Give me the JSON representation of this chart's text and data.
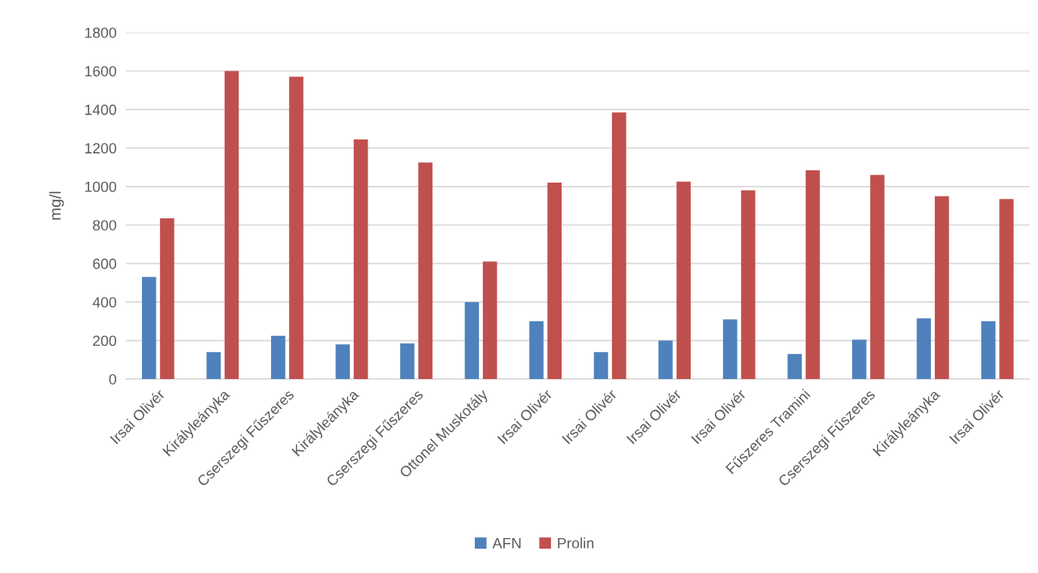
{
  "chart_data": {
    "type": "bar",
    "ylabel": "mg/l",
    "categories": [
      "Irsai Olivér",
      "Királyleányka",
      "Cserszegi Fűszeres",
      "Királyleányka",
      "Cserszegi Fűszeres",
      "Ottonel Muskotály",
      "Irsai Olivér",
      "Irsai Olivér",
      "Irsai Olivér",
      "Irsai Olivér",
      "Fűszeres Tramini",
      "Cserszegi Fűszeres",
      "Királyleányka",
      "Irsai Olivér"
    ],
    "series": [
      {
        "name": "AFN",
        "color": "#4f81bd",
        "values": [
          530,
          140,
          225,
          180,
          185,
          400,
          300,
          140,
          200,
          310,
          130,
          205,
          315,
          300
        ]
      },
      {
        "name": "Prolin",
        "color": "#c0504d",
        "values": [
          835,
          1600,
          1570,
          1245,
          1125,
          610,
          1020,
          1385,
          1025,
          980,
          1085,
          1060,
          950,
          935
        ]
      }
    ],
    "ylim": [
      0,
      1800
    ],
    "yticks": [
      0,
      200,
      400,
      600,
      800,
      1000,
      1200,
      1400,
      1600,
      1800
    ],
    "grid": "y",
    "legend": "bottom"
  }
}
